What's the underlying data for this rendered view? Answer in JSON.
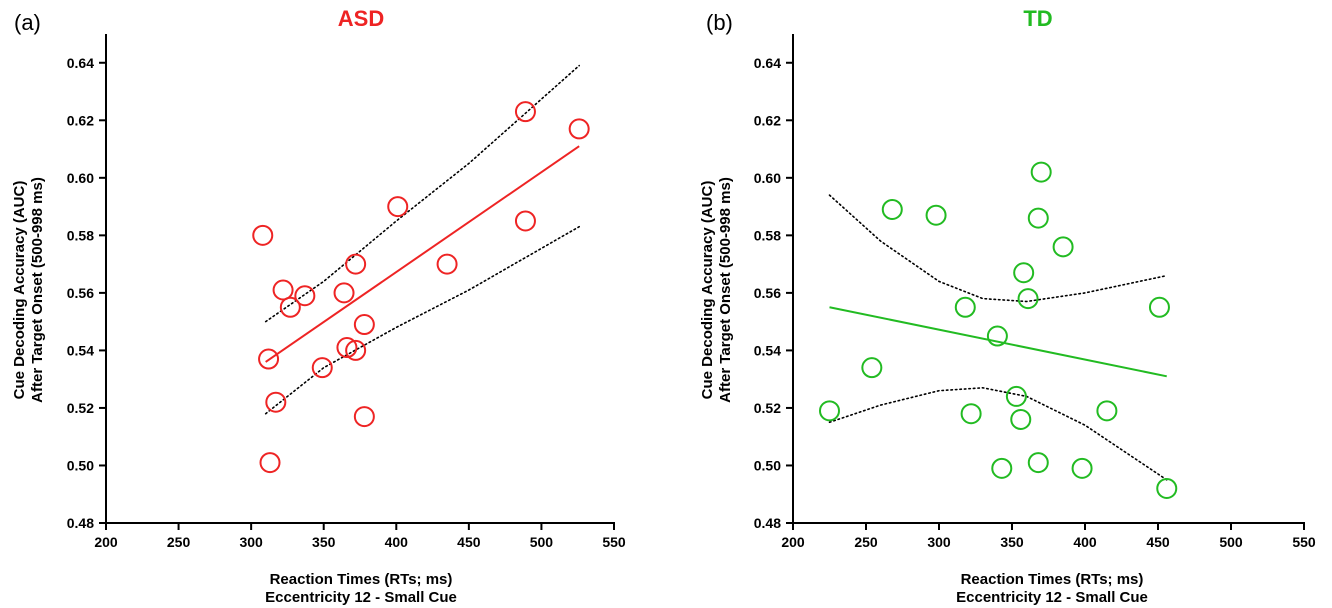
{
  "chart_data": [
    {
      "type": "scatter",
      "panel_label": "(a)",
      "title": "ASD",
      "title_color": "#ee2424",
      "marker_color": "#ee2424",
      "xlabel": [
        "Reaction Times (RTs; ms)",
        "Eccentricity 12 - Small Cue"
      ],
      "ylabel": [
        "Cue Decoding Accuracy  (AUC)",
        "After Target Onset  (500-998 ms)"
      ],
      "xlim": [
        200,
        550
      ],
      "ylim": [
        0.48,
        0.65
      ],
      "xticks": [
        "200",
        "250",
        "300",
        "350",
        "400",
        "450",
        "500",
        "550"
      ],
      "yticks": [
        "0.48",
        "0.50",
        "0.52",
        "0.54",
        "0.56",
        "0.58",
        "0.60",
        "0.62",
        "0.64"
      ],
      "points": [
        {
          "x": 308,
          "y": 0.58
        },
        {
          "x": 312,
          "y": 0.537
        },
        {
          "x": 313,
          "y": 0.501
        },
        {
          "x": 317,
          "y": 0.522
        },
        {
          "x": 322,
          "y": 0.561
        },
        {
          "x": 327,
          "y": 0.555
        },
        {
          "x": 337,
          "y": 0.559
        },
        {
          "x": 349,
          "y": 0.534
        },
        {
          "x": 364,
          "y": 0.56
        },
        {
          "x": 366,
          "y": 0.541
        },
        {
          "x": 372,
          "y": 0.54
        },
        {
          "x": 372,
          "y": 0.57
        },
        {
          "x": 378,
          "y": 0.549
        },
        {
          "x": 378,
          "y": 0.517
        },
        {
          "x": 401,
          "y": 0.59
        },
        {
          "x": 435,
          "y": 0.57
        },
        {
          "x": 489,
          "y": 0.623
        },
        {
          "x": 489,
          "y": 0.585
        },
        {
          "x": 526,
          "y": 0.617
        }
      ],
      "fit_line": {
        "x": [
          310,
          526
        ],
        "y": [
          0.536,
          0.611
        ]
      },
      "ci_upper": {
        "x": [
          310,
          350,
          400,
          450,
          526
        ],
        "y": [
          0.55,
          0.564,
          0.585,
          0.605,
          0.639
        ]
      },
      "ci_lower": {
        "x": [
          310,
          350,
          400,
          450,
          526
        ],
        "y": [
          0.518,
          0.534,
          0.548,
          0.561,
          0.583
        ]
      }
    },
    {
      "type": "scatter",
      "panel_label": "(b)",
      "title": "TD",
      "title_color": "#22bb22",
      "marker_color": "#22bb22",
      "xlabel": [
        "Reaction Times (RTs; ms)",
        "Eccentricity 12 - Small  Cue"
      ],
      "ylabel": [
        "Cue Decoding Accuracy  (AUC)",
        "After Target Onset  (500-998 ms)"
      ],
      "xlim": [
        200,
        550
      ],
      "ylim": [
        0.48,
        0.65
      ],
      "xticks": [
        "200",
        "250",
        "300",
        "350",
        "400",
        "450",
        "500",
        "550"
      ],
      "yticks": [
        "0.48",
        "0.50",
        "0.52",
        "0.54",
        "0.56",
        "0.58",
        "0.60",
        "0.62",
        "0.64"
      ],
      "points": [
        {
          "x": 225,
          "y": 0.519
        },
        {
          "x": 254,
          "y": 0.534
        },
        {
          "x": 268,
          "y": 0.589
        },
        {
          "x": 298,
          "y": 0.587
        },
        {
          "x": 318,
          "y": 0.555
        },
        {
          "x": 322,
          "y": 0.518
        },
        {
          "x": 340,
          "y": 0.545
        },
        {
          "x": 343,
          "y": 0.499
        },
        {
          "x": 353,
          "y": 0.524
        },
        {
          "x": 356,
          "y": 0.516
        },
        {
          "x": 358,
          "y": 0.567
        },
        {
          "x": 361,
          "y": 0.558
        },
        {
          "x": 368,
          "y": 0.586
        },
        {
          "x": 368,
          "y": 0.501
        },
        {
          "x": 370,
          "y": 0.602
        },
        {
          "x": 385,
          "y": 0.576
        },
        {
          "x": 398,
          "y": 0.499
        },
        {
          "x": 415,
          "y": 0.519
        },
        {
          "x": 451,
          "y": 0.555
        },
        {
          "x": 456,
          "y": 0.492
        }
      ],
      "fit_line": {
        "x": [
          225,
          456
        ],
        "y": [
          0.555,
          0.531
        ]
      },
      "ci_upper": {
        "x": [
          225,
          260,
          300,
          330,
          360,
          400,
          456
        ],
        "y": [
          0.594,
          0.578,
          0.564,
          0.558,
          0.557,
          0.56,
          0.566
        ]
      },
      "ci_lower": {
        "x": [
          225,
          260,
          300,
          330,
          360,
          400,
          456
        ],
        "y": [
          0.515,
          0.521,
          0.526,
          0.527,
          0.524,
          0.514,
          0.495
        ]
      }
    }
  ]
}
